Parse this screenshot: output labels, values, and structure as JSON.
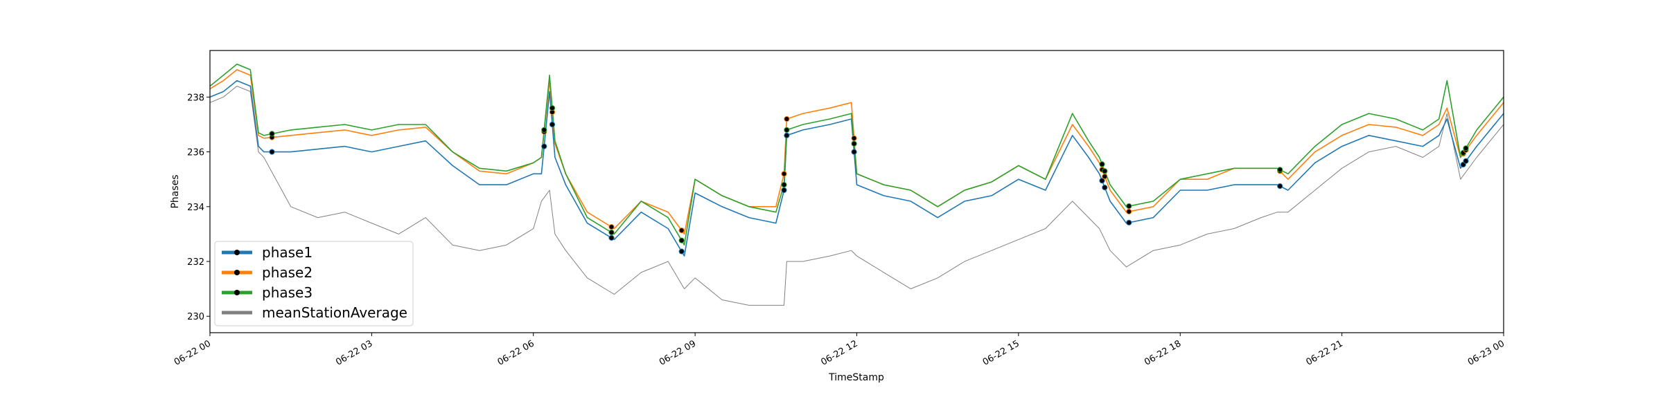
{
  "chart_data": {
    "type": "line",
    "xlabel": "TimeStamp",
    "ylabel": "Phases",
    "xlim": [
      "2023-06-22T00:00",
      "2023-06-23T00:00"
    ],
    "ylim": [
      229.4,
      239.7
    ],
    "x_tick_labels": [
      "06-22 00",
      "06-22 03",
      "06-22 06",
      "06-22 09",
      "06-22 12",
      "06-22 15",
      "06-22 18",
      "06-22 21",
      "06-23 00"
    ],
    "x_tick_hours": [
      0,
      3,
      6,
      9,
      12,
      15,
      18,
      21,
      24
    ],
    "y_ticks": [
      230,
      232,
      234,
      236,
      238
    ],
    "grid": false,
    "legend_position": "lower-left",
    "x_unit": "hours since 06-22 00",
    "series": [
      {
        "name": "phase1",
        "color": "#1f77b4",
        "x": [
          0,
          0.25,
          0.5,
          0.75,
          0.9,
          1.0,
          1.5,
          2.0,
          2.5,
          3.0,
          3.5,
          4.0,
          4.5,
          5.0,
          5.5,
          6.0,
          6.15,
          6.3,
          6.4,
          6.6,
          7.0,
          7.5,
          8.0,
          8.5,
          8.8,
          9.0,
          9.5,
          10.0,
          10.5,
          10.65,
          10.7,
          11.0,
          11.5,
          11.9,
          12.0,
          12.5,
          13.0,
          13.5,
          14.0,
          14.5,
          15.0,
          15.5,
          16.0,
          16.3,
          16.5,
          16.7,
          17.0,
          17.5,
          18.0,
          18.5,
          19.0,
          19.5,
          19.8,
          20.0,
          20.5,
          21.0,
          21.5,
          22.0,
          22.5,
          22.8,
          22.95,
          23.2,
          23.5,
          24.0
        ],
        "y": [
          238.0,
          238.2,
          238.6,
          238.4,
          236.2,
          236.0,
          236.0,
          236.1,
          236.2,
          236.0,
          236.2,
          236.4,
          235.5,
          234.8,
          234.8,
          235.2,
          235.2,
          238.2,
          235.8,
          234.8,
          233.4,
          232.8,
          233.8,
          233.2,
          232.2,
          234.5,
          234.0,
          233.6,
          233.4,
          234.6,
          236.6,
          236.8,
          237.0,
          237.2,
          234.8,
          234.4,
          234.2,
          233.6,
          234.2,
          234.4,
          235.0,
          234.6,
          236.6,
          235.8,
          235.2,
          234.2,
          233.4,
          233.6,
          234.6,
          234.6,
          234.8,
          234.8,
          234.8,
          234.6,
          235.6,
          236.2,
          236.6,
          236.4,
          236.2,
          236.6,
          237.2,
          235.4,
          236.2,
          237.4
        ]
      },
      {
        "name": "phase2",
        "color": "#ff7f0e",
        "x": [
          0,
          0.25,
          0.5,
          0.75,
          0.9,
          1.0,
          1.5,
          2.0,
          2.5,
          3.0,
          3.5,
          4.0,
          4.5,
          5.0,
          5.5,
          6.0,
          6.15,
          6.3,
          6.4,
          6.6,
          7.0,
          7.5,
          8.0,
          8.5,
          8.8,
          9.0,
          9.5,
          10.0,
          10.5,
          10.65,
          10.7,
          11.0,
          11.5,
          11.9,
          12.0,
          12.5,
          13.0,
          13.5,
          14.0,
          14.5,
          15.0,
          15.5,
          16.0,
          16.3,
          16.5,
          16.7,
          17.0,
          17.5,
          18.0,
          18.5,
          19.0,
          19.5,
          19.8,
          20.0,
          20.5,
          21.0,
          21.5,
          22.0,
          22.5,
          22.8,
          22.95,
          23.2,
          23.5,
          24.0
        ],
        "y": [
          238.3,
          238.6,
          239.0,
          238.8,
          236.6,
          236.5,
          236.6,
          236.7,
          236.8,
          236.6,
          236.8,
          236.9,
          236.0,
          235.3,
          235.2,
          235.6,
          235.8,
          238.6,
          236.3,
          235.2,
          233.8,
          233.2,
          234.2,
          233.8,
          233.0,
          235.0,
          234.4,
          234.0,
          234.0,
          235.2,
          237.2,
          237.4,
          237.6,
          237.8,
          235.2,
          234.8,
          234.6,
          234.0,
          234.6,
          234.9,
          235.5,
          235.0,
          237.0,
          236.2,
          235.6,
          234.6,
          233.8,
          234.0,
          235.0,
          235.0,
          235.4,
          235.4,
          235.4,
          235.0,
          236.0,
          236.6,
          237.0,
          236.9,
          236.6,
          237.0,
          237.6,
          235.8,
          236.6,
          237.8
        ]
      },
      {
        "name": "phase3",
        "color": "#2ca02c",
        "x": [
          0,
          0.25,
          0.5,
          0.75,
          0.9,
          1.0,
          1.5,
          2.0,
          2.5,
          3.0,
          3.5,
          4.0,
          4.5,
          5.0,
          5.5,
          6.0,
          6.15,
          6.3,
          6.4,
          6.6,
          7.0,
          7.5,
          8.0,
          8.5,
          8.8,
          9.0,
          9.5,
          10.0,
          10.5,
          10.65,
          10.7,
          11.0,
          11.5,
          11.9,
          12.0,
          12.5,
          13.0,
          13.5,
          14.0,
          14.5,
          15.0,
          15.5,
          16.0,
          16.3,
          16.5,
          16.7,
          17.0,
          17.5,
          18.0,
          18.5,
          19.0,
          19.5,
          19.8,
          20.0,
          20.5,
          21.0,
          21.5,
          22.0,
          22.5,
          22.8,
          22.95,
          23.2,
          23.5,
          24.0
        ],
        "y": [
          238.4,
          238.8,
          239.2,
          239.0,
          236.7,
          236.6,
          236.8,
          236.9,
          237.0,
          236.8,
          237.0,
          237.0,
          236.0,
          235.4,
          235.3,
          235.6,
          235.8,
          238.8,
          236.4,
          235.2,
          233.6,
          233.0,
          234.2,
          233.6,
          232.6,
          235.0,
          234.4,
          234.0,
          233.8,
          234.8,
          236.8,
          237.0,
          237.2,
          237.4,
          235.2,
          234.8,
          234.6,
          234.0,
          234.6,
          234.9,
          235.5,
          235.0,
          237.4,
          236.4,
          235.8,
          234.8,
          234.0,
          234.2,
          235.0,
          235.2,
          235.4,
          235.4,
          235.4,
          235.2,
          236.2,
          237.0,
          237.4,
          237.2,
          236.8,
          237.2,
          238.6,
          235.8,
          236.8,
          238.0
        ]
      },
      {
        "name": "meanStationAverage",
        "color": "#808080",
        "x": [
          0,
          0.25,
          0.5,
          0.75,
          0.9,
          1.0,
          1.5,
          2.0,
          2.5,
          3.0,
          3.5,
          4.0,
          4.5,
          5.0,
          5.5,
          6.0,
          6.15,
          6.3,
          6.4,
          6.6,
          7.0,
          7.5,
          8.0,
          8.5,
          8.8,
          9.0,
          9.5,
          10.0,
          10.5,
          10.65,
          10.7,
          11.0,
          11.5,
          11.9,
          12.0,
          12.5,
          13.0,
          13.5,
          14.0,
          14.5,
          15.0,
          15.5,
          16.0,
          16.3,
          16.5,
          16.7,
          17.0,
          17.5,
          18.0,
          18.5,
          19.0,
          19.5,
          19.8,
          20.0,
          20.5,
          21.0,
          21.5,
          22.0,
          22.5,
          22.8,
          22.95,
          23.2,
          23.5,
          24.0
        ],
        "y": [
          237.8,
          238.0,
          238.4,
          238.2,
          236.0,
          235.8,
          234.0,
          233.6,
          233.8,
          233.4,
          233.0,
          233.6,
          232.6,
          232.4,
          232.6,
          233.2,
          234.2,
          234.6,
          233.0,
          232.4,
          231.4,
          230.8,
          231.6,
          232.0,
          231.0,
          231.4,
          230.6,
          230.4,
          230.4,
          230.4,
          232.0,
          232.0,
          232.2,
          232.4,
          232.2,
          231.6,
          231.0,
          231.4,
          232.0,
          232.4,
          232.8,
          233.2,
          234.2,
          233.6,
          233.2,
          232.4,
          231.8,
          232.4,
          232.6,
          233.0,
          233.2,
          233.6,
          233.8,
          233.8,
          234.6,
          235.4,
          236.0,
          236.2,
          235.8,
          236.2,
          237.4,
          235.0,
          235.8,
          237.0
        ]
      }
    ],
    "event_marker_hours": [
      1.15,
      6.2,
      6.35,
      7.45,
      8.75,
      10.65,
      10.7,
      11.95,
      16.55,
      16.6,
      17.05,
      19.85,
      23.25,
      23.3
    ]
  }
}
